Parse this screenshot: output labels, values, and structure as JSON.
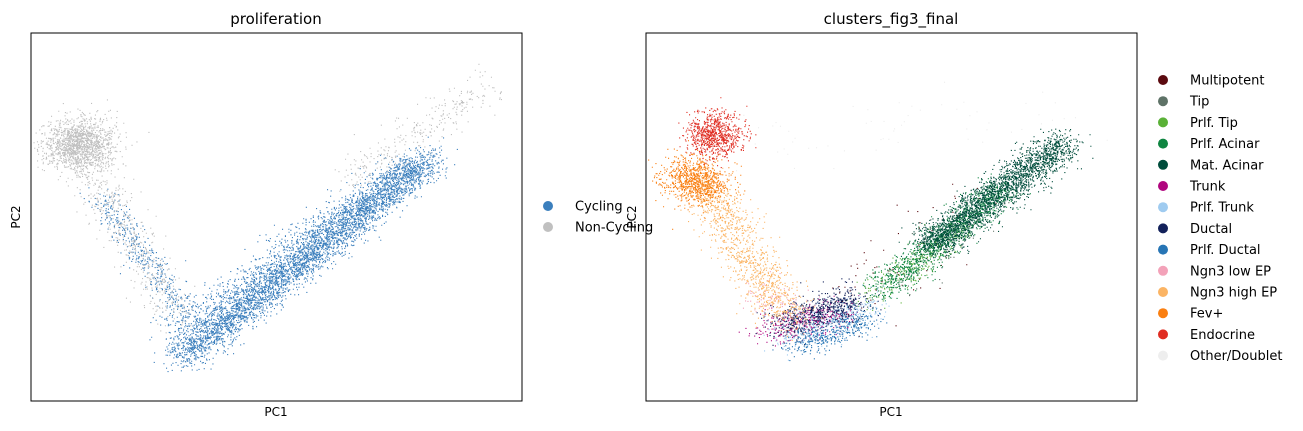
{
  "chart_data": [
    {
      "type": "scatter",
      "title": "proliferation",
      "xlabel": "PC1",
      "ylabel": "PC2",
      "xticks": [],
      "yticks": [],
      "xlim": [
        -1,
        1
      ],
      "ylim": [
        -1,
        1
      ],
      "grid": false,
      "legend": {
        "placement": "right-outside",
        "entries": [
          "Cycling",
          "Non-Cycling"
        ]
      },
      "series": [
        {
          "name": "Cycling",
          "color": "#3b7fbd",
          "clusters": [
            {
              "points": [
                [
                  -0.38,
                  -0.75
                ],
                [
                  0.62,
                  0.32
                ]
              ],
              "n": 4200,
              "spread": 0.045
            },
            {
              "points": [
                [
                  -0.42,
                  -0.62
                ],
                [
                  0.55,
                  0.28
                ]
              ],
              "n": 900,
              "spread": 0.05
            },
            {
              "points": [
                [
                  -0.72,
                  0.1
                ],
                [
                  -0.35,
                  -0.55
                ]
              ],
              "n": 450,
              "spread": 0.035
            }
          ]
        },
        {
          "name": "Non-Cycling",
          "color": "#c0c0c0",
          "clusters": [
            {
              "points": [
                [
                  -0.8,
                  0.4
                ],
                [
                  -0.8,
                  0.4
                ]
              ],
              "n": 1500,
              "spread": 0.07
            },
            {
              "points": [
                [
                  -0.78,
                  0.3
                ],
                [
                  -0.4,
                  -0.55
                ]
              ],
              "n": 500,
              "spread": 0.05
            },
            {
              "points": [
                [
                  0.3,
                  0.2
                ],
                [
                  0.85,
                  0.72
                ]
              ],
              "n": 300,
              "spread": 0.05
            }
          ]
        }
      ]
    },
    {
      "type": "scatter",
      "title": "clusters_fig3_final",
      "xlabel": "PC1",
      "ylabel": "PC2",
      "xticks": [],
      "yticks": [],
      "xlim": [
        -1,
        1
      ],
      "ylim": [
        -1,
        1
      ],
      "grid": false,
      "legend": {
        "placement": "right-outside",
        "entries": [
          "Multipotent",
          "Tip",
          "Prlf. Tip",
          "Prlf. Acinar",
          "Mat. Acinar",
          "Trunk",
          "Prlf. Trunk",
          "Ductal",
          "Prlf. Ductal",
          "Ngn3 low EP",
          "Ngn3 high EP",
          "Fev+",
          "Endocrine",
          "Other/Doublet"
        ]
      },
      "series": [
        {
          "name": "Multipotent",
          "color": "#5b0a0f",
          "clusters": [
            {
              "points": [
                [
                  -0.2,
                  -0.5
                ],
                [
                  0.3,
                  0.1
                ]
              ],
              "n": 80,
              "spread": 0.08
            }
          ]
        },
        {
          "name": "Tip",
          "color": "#5e7267",
          "clusters": [
            {
              "points": [
                [
                  0.0,
                  -0.4
                ],
                [
                  0.4,
                  0.1
                ]
              ],
              "n": 80,
              "spread": 0.06
            }
          ]
        },
        {
          "name": "Prlf. Tip",
          "color": "#5ab137",
          "clusters": [
            {
              "points": [
                [
                  -0.1,
                  -0.45
                ],
                [
                  0.3,
                  -0.05
                ]
              ],
              "n": 250,
              "spread": 0.04
            }
          ]
        },
        {
          "name": "Prlf. Acinar",
          "color": "#0f8541",
          "clusters": [
            {
              "points": [
                [
                  -0.05,
                  -0.4
                ],
                [
                  0.45,
                  0.15
                ]
              ],
              "n": 1200,
              "spread": 0.04
            }
          ]
        },
        {
          "name": "Mat. Acinar",
          "color": "#004d3c",
          "clusters": [
            {
              "points": [
                [
                  0.15,
                  -0.15
                ],
                [
                  0.7,
                  0.4
                ]
              ],
              "n": 2500,
              "spread": 0.045
            }
          ]
        },
        {
          "name": "Trunk",
          "color": "#b0067e",
          "clusters": [
            {
              "points": [
                [
                  -0.52,
                  -0.62
                ],
                [
                  -0.2,
                  -0.52
                ]
              ],
              "n": 350,
              "spread": 0.045
            }
          ]
        },
        {
          "name": "Prlf. Trunk",
          "color": "#9fcbf0",
          "clusters": [
            {
              "points": [
                [
                  -0.45,
                  -0.65
                ],
                [
                  -0.05,
                  -0.45
                ]
              ],
              "n": 300,
              "spread": 0.05
            }
          ]
        },
        {
          "name": "Ductal",
          "color": "#12215a",
          "clusters": [
            {
              "points": [
                [
                  -0.45,
                  -0.58
                ],
                [
                  -0.15,
                  -0.45
                ]
              ],
              "n": 650,
              "spread": 0.045
            }
          ]
        },
        {
          "name": "Prlf. Ductal",
          "color": "#2775b5",
          "clusters": [
            {
              "points": [
                [
                  -0.4,
                  -0.7
                ],
                [
                  -0.1,
                  -0.55
                ]
              ],
              "n": 450,
              "spread": 0.04
            }
          ]
        },
        {
          "name": "Ngn3 low EP",
          "color": "#f3a2b9",
          "clusters": [
            {
              "points": [
                [
                  -0.55,
                  -0.4
                ],
                [
                  -0.35,
                  -0.55
                ]
              ],
              "n": 120,
              "spread": 0.05
            }
          ]
        },
        {
          "name": "Ngn3 high EP",
          "color": "#fbb464",
          "clusters": [
            {
              "points": [
                [
                  -0.78,
                  0.2
                ],
                [
                  -0.42,
                  -0.55
                ]
              ],
              "n": 1100,
              "spread": 0.055
            }
          ]
        },
        {
          "name": "Fev+",
          "color": "#fa7f11",
          "clusters": [
            {
              "points": [
                [
                  -0.85,
                  0.25
                ],
                [
                  -0.75,
                  0.15
                ]
              ],
              "n": 900,
              "spread": 0.06
            }
          ]
        },
        {
          "name": "Endocrine",
          "color": "#e02d22",
          "clusters": [
            {
              "points": [
                [
                  -0.72,
                  0.45
                ],
                [
                  -0.72,
                  0.45
                ]
              ],
              "n": 800,
              "spread": 0.06
            }
          ]
        },
        {
          "name": "Other/Doublet",
          "color": "#eeeeee",
          "clusters": [
            {
              "points": [
                [
                  -0.6,
                  0.4
                ],
                [
                  0.8,
                  0.6
                ]
              ],
              "n": 60,
              "spread": 0.1
            }
          ]
        }
      ]
    }
  ]
}
